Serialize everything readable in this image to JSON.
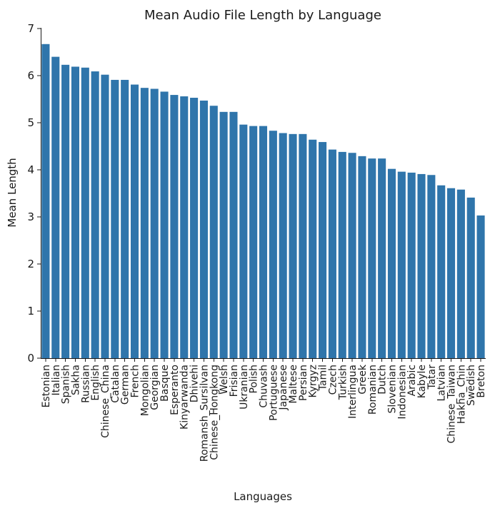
{
  "chart_data": {
    "type": "bar",
    "title": "Mean Audio File Length by Language",
    "xlabel": "Languages",
    "ylabel": "Mean Length",
    "ylim": [
      0,
      7
    ],
    "yticks": [
      0,
      1,
      2,
      3,
      4,
      5,
      6,
      7
    ],
    "grid": false,
    "color": "#2f75ab",
    "categories": [
      "Estonian",
      "Italian",
      "Spanish",
      "Sakha",
      "Russian",
      "English",
      "Chinese_China",
      "Catalan",
      "German",
      "French",
      "Mongolian",
      "Georgian",
      "Basque",
      "Esperanto",
      "Kinyarwanda",
      "Dhivehi",
      "Romansh_Sursilvan",
      "Chinese_Hongkong",
      "Welsh",
      "Frisian",
      "Ukranian",
      "Polish",
      "Chuvash",
      "Portuguese",
      "Japanese",
      "Maltese",
      "Persian",
      "Kyrgyz",
      "Tamil",
      "Czech",
      "Turkish",
      "Interlingua",
      "Greek",
      "Romanian",
      "Dutch",
      "Slovenian",
      "Indonesian",
      "Arabic",
      "Kabyle",
      "Tatar",
      "Latvian",
      "Chinese_Taiwan",
      "Hakha_Chin",
      "Swedish",
      "Breton"
    ],
    "values": [
      6.67,
      6.4,
      6.23,
      6.19,
      6.17,
      6.09,
      6.02,
      5.91,
      5.91,
      5.81,
      5.74,
      5.72,
      5.66,
      5.59,
      5.56,
      5.53,
      5.47,
      5.36,
      5.23,
      5.23,
      4.96,
      4.93,
      4.93,
      4.83,
      4.78,
      4.76,
      4.76,
      4.64,
      4.59,
      4.43,
      4.38,
      4.36,
      4.29,
      4.24,
      4.24,
      4.02,
      3.96,
      3.94,
      3.91,
      3.89,
      3.67,
      3.61,
      3.58,
      3.41,
      3.03
    ]
  }
}
